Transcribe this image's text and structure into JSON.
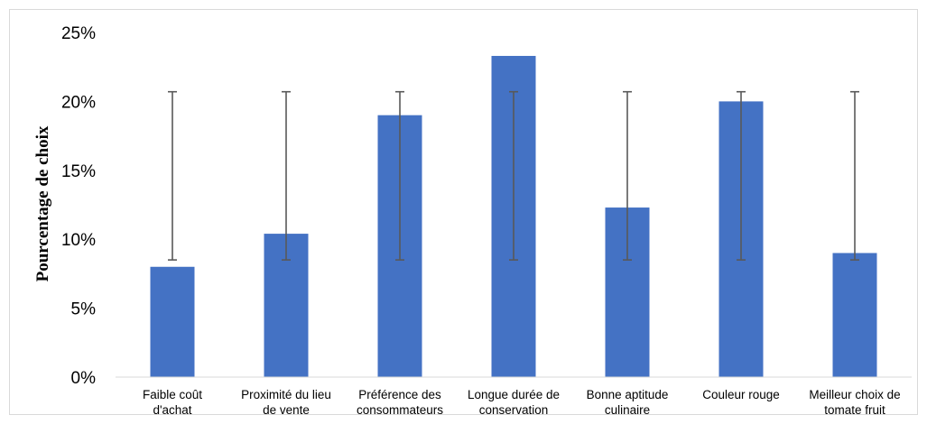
{
  "chart_data": {
    "type": "bar",
    "title": "",
    "xlabel": "",
    "ylabel": "Pourcentage de choix",
    "ylim": [
      0,
      25
    ],
    "yticks": [
      "0%",
      "5%",
      "10%",
      "15%",
      "20%",
      "25%"
    ],
    "grid": false,
    "categories": [
      [
        "Faible coût",
        "d'achat"
      ],
      [
        "Proximité du lieu",
        "de vente"
      ],
      [
        "Préférence des",
        "consommateurs"
      ],
      [
        "Longue durée de",
        "conservation"
      ],
      [
        "Bonne aptitude",
        "culinaire"
      ],
      [
        "Couleur rouge"
      ],
      [
        "Meilleur choix de",
        "tomate fruit"
      ]
    ],
    "values": [
      8.0,
      10.4,
      19.0,
      23.3,
      12.3,
      20.0,
      9.0
    ],
    "error_bars": [
      {
        "low": 8.5,
        "high": 20.7
      },
      {
        "low": 8.5,
        "high": 20.7
      },
      {
        "low": 8.5,
        "high": 20.7
      },
      {
        "low": 8.5,
        "high": 20.7
      },
      {
        "low": 8.5,
        "high": 20.7
      },
      {
        "low": 8.5,
        "high": 20.7
      },
      {
        "low": 8.5,
        "high": 20.7
      }
    ],
    "bar_color": "#4472c4",
    "error_bar_color": "#595959"
  }
}
